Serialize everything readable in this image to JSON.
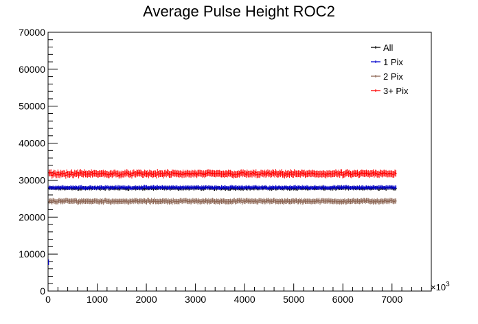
{
  "chart_data": {
    "type": "scatter",
    "title": "Average Pulse Height ROC2",
    "xlabel": "",
    "ylabel": "",
    "xlim": [
      0,
      7800
    ],
    "ylim": [
      0,
      70000
    ],
    "x_ticks": [
      0,
      1000,
      2000,
      3000,
      4000,
      5000,
      6000,
      7000
    ],
    "x_tick_labels": [
      "0",
      "1000",
      "2000",
      "3000",
      "4000",
      "5000",
      "6000",
      "7000"
    ],
    "x_multiplier": "×10",
    "x_multiplier_exp": "3",
    "y_ticks": [
      0,
      10000,
      20000,
      30000,
      40000,
      50000,
      60000,
      70000
    ],
    "y_tick_labels": [
      "0",
      "10000",
      "20000",
      "30000",
      "40000",
      "50000",
      "60000",
      "70000"
    ],
    "grid": false,
    "legend_position": "top-right",
    "error_bars": true,
    "x_range": [
      20,
      7080
    ],
    "series": [
      {
        "name": "All",
        "color": "#000000",
        "mean": 27800,
        "noise": 250,
        "error": 500
      },
      {
        "name": "1 Pix",
        "color": "#0000cc",
        "mean": 28000,
        "noise": 250,
        "error": 500,
        "outlier_points": [
          [
            10,
            7800
          ]
        ]
      },
      {
        "name": "2 Pix",
        "color": "#8b6452",
        "mean": 24300,
        "noise": 300,
        "error": 700
      },
      {
        "name": "3+ Pix",
        "color": "#ff0000",
        "mean": 31700,
        "noise": 450,
        "error": 900
      }
    ]
  }
}
